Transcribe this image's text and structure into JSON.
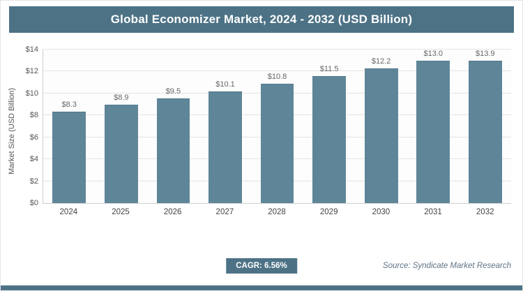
{
  "title": "Global Economizer Market, 2024 - 2032 (USD Billion)",
  "chart_data": {
    "type": "bar",
    "title": "Global Economizer Market, 2024 - 2032 (USD Billion)",
    "categories": [
      "2024",
      "2025",
      "2026",
      "2027",
      "2028",
      "2029",
      "2030",
      "2031",
      "2032"
    ],
    "values": [
      8.3,
      8.9,
      9.5,
      10.1,
      10.8,
      11.5,
      12.2,
      13.0,
      13.9
    ],
    "value_labels": [
      "$8.3",
      "$8.9",
      "$9.5",
      "$10.1",
      "$10.8",
      "$11.5",
      "$12.2",
      "$13.0",
      "$13.9"
    ],
    "xlabel": "",
    "ylabel": "Market Size (USD Billion)",
    "ylim": [
      0,
      14
    ],
    "yticks": [
      0,
      2,
      4,
      6,
      8,
      10,
      12,
      14
    ],
    "ytick_labels": [
      "$0",
      "$2",
      "$4",
      "$6",
      "$8",
      "$10",
      "$12",
      "$14"
    ],
    "grid": true,
    "legend_position": "none",
    "bar_color": "#5f8598"
  },
  "footer": {
    "cagr_label": "CAGR: 6.56%",
    "source": "Source: Syndicate Market Research"
  },
  "colors": {
    "accent": "#4d7286",
    "bar": "#5f8598"
  }
}
